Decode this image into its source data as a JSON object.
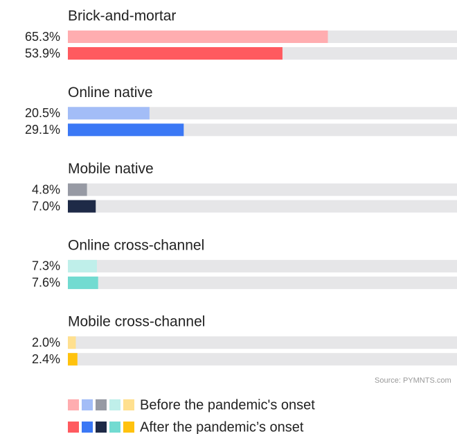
{
  "chart_data": {
    "type": "bar",
    "orientation": "horizontal",
    "categories": [
      "Brick-and-mortar",
      "Online native",
      "Mobile native",
      "Online cross-channel",
      "Mobile cross-channel"
    ],
    "series": [
      {
        "name": "Before the pandemic's onset",
        "colors": [
          "#ffadb0",
          "#a3bdf7",
          "#979aa4",
          "#bfefea",
          "#ffe08f"
        ],
        "values": [
          65.3,
          20.5,
          4.8,
          7.3,
          2.0
        ],
        "value_labels": [
          "65.3%",
          "20.5%",
          "4.8%",
          "7.3%",
          "2.0%"
        ]
      },
      {
        "name": "After the pandemic’s onset",
        "colors": [
          "#ff5a5f",
          "#3b78f5",
          "#1e2a47",
          "#72dbd1",
          "#ffc20e"
        ],
        "values": [
          53.9,
          29.1,
          7.0,
          7.6,
          2.4
        ],
        "value_labels": [
          "53.9%",
          "29.1%",
          "7.0%",
          "7.6%",
          "2.4%"
        ]
      }
    ],
    "xlim": [
      0,
      100
    ],
    "source": "Source: PYMNTS.com"
  }
}
